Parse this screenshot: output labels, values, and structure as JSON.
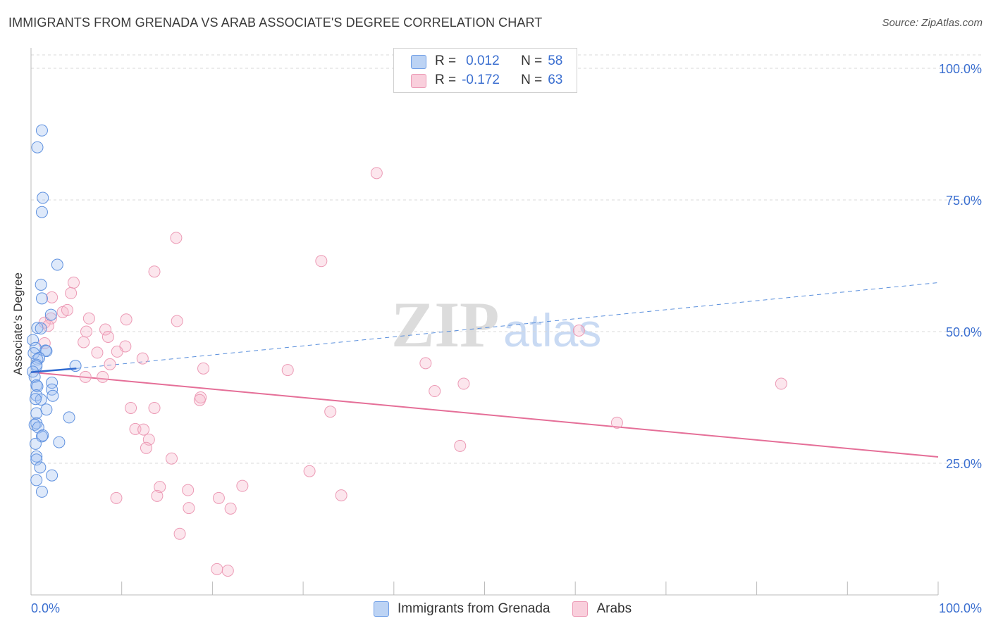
{
  "title": "IMMIGRANTS FROM GRENADA VS ARAB ASSOCIATE'S DEGREE CORRELATION CHART",
  "source": "Source: ZipAtlas.com",
  "watermark": {
    "zip": "ZIP",
    "atlas": "atlas"
  },
  "legend": {
    "r_label": "R =",
    "n_label": "N =",
    "series": [
      {
        "r": "0.012",
        "n": "58",
        "color": "#a9c6f2",
        "stroke": "#5a8fdc"
      },
      {
        "r": "-0.172",
        "n": "63",
        "color": "#f7bfd0",
        "stroke": "#e98aa8"
      }
    ]
  },
  "bottom_legend": [
    "Immigrants from Grenada",
    "Arabs"
  ],
  "chart_data": {
    "type": "scatter",
    "title": "IMMIGRANTS FROM GRENADA VS ARAB ASSOCIATE'S DEGREE CORRELATION CHART",
    "xlabel": "",
    "ylabel": "Associate's Degree",
    "xlim": [
      0,
      100
    ],
    "ylim": [
      0,
      100
    ],
    "x_tick_labels": [
      "0.0%",
      "100.0%"
    ],
    "y_tick_labels": [
      "100.0%",
      "75.0%",
      "50.0%",
      "25.0%"
    ],
    "y_ticks": [
      100,
      75,
      50,
      25
    ],
    "grid": true,
    "legend_position": "top-center",
    "series": [
      {
        "name": "Immigrants from Grenada",
        "color": "#6f9ee6",
        "r": 0.012,
        "n": 58,
        "trend": {
          "x": [
            0,
            5
          ],
          "y": [
            42.3,
            43.0
          ],
          "extended_to": [
            100,
            59.3
          ]
        },
        "points": [
          [
            1.2,
            88.2
          ],
          [
            0.7,
            85.0
          ],
          [
            1.3,
            75.4
          ],
          [
            1.2,
            72.7
          ],
          [
            2.9,
            62.7
          ],
          [
            1.1,
            58.9
          ],
          [
            1.2,
            56.3
          ],
          [
            2.2,
            53.2
          ],
          [
            0.7,
            50.7
          ],
          [
            1.1,
            50.6
          ],
          [
            0.2,
            48.4
          ],
          [
            0.5,
            46.9
          ],
          [
            1.6,
            46.4
          ],
          [
            1.7,
            46.3
          ],
          [
            0.3,
            45.9
          ],
          [
            0.9,
            45.0
          ],
          [
            0.7,
            44.7
          ],
          [
            0.6,
            43.7
          ],
          [
            0.6,
            43.4
          ],
          [
            4.9,
            43.5
          ],
          [
            0.2,
            42.4
          ],
          [
            0.4,
            41.4
          ],
          [
            2.3,
            40.3
          ],
          [
            0.6,
            39.8
          ],
          [
            0.7,
            39.6
          ],
          [
            2.3,
            39.0
          ],
          [
            0.6,
            37.9
          ],
          [
            2.4,
            37.8
          ],
          [
            1.1,
            37.1
          ],
          [
            0.5,
            37.2
          ],
          [
            1.7,
            35.2
          ],
          [
            0.6,
            34.5
          ],
          [
            4.2,
            33.7
          ],
          [
            0.6,
            32.6
          ],
          [
            0.4,
            32.3
          ],
          [
            0.8,
            31.8
          ],
          [
            1.3,
            30.3
          ],
          [
            1.2,
            30.1
          ],
          [
            3.1,
            29.0
          ],
          [
            0.5,
            28.7
          ],
          [
            0.6,
            26.3
          ],
          [
            0.6,
            25.7
          ],
          [
            1.0,
            24.2
          ],
          [
            2.3,
            22.7
          ],
          [
            0.6,
            21.8
          ],
          [
            1.2,
            19.6
          ]
        ]
      },
      {
        "name": "Arabs",
        "color": "#f2a3bc",
        "r": -0.172,
        "n": 63,
        "trend": {
          "x": [
            0,
            100
          ],
          "y": [
            42.3,
            26.2
          ]
        },
        "points": [
          [
            38.1,
            80.1
          ],
          [
            16.0,
            67.8
          ],
          [
            32.0,
            63.4
          ],
          [
            13.6,
            61.4
          ],
          [
            4.7,
            59.3
          ],
          [
            4.4,
            57.3
          ],
          [
            2.3,
            56.5
          ],
          [
            2.2,
            52.5
          ],
          [
            3.5,
            53.7
          ],
          [
            4.0,
            54.1
          ],
          [
            6.4,
            52.5
          ],
          [
            10.5,
            52.3
          ],
          [
            16.1,
            52.0
          ],
          [
            1.5,
            51.7
          ],
          [
            1.9,
            51.1
          ],
          [
            6.1,
            50.0
          ],
          [
            8.2,
            50.4
          ],
          [
            60.4,
            50.2
          ],
          [
            8.5,
            49.0
          ],
          [
            5.8,
            48.0
          ],
          [
            10.4,
            47.2
          ],
          [
            1.5,
            47.8
          ],
          [
            9.5,
            46.2
          ],
          [
            7.3,
            46.0
          ],
          [
            12.3,
            44.9
          ],
          [
            8.7,
            43.8
          ],
          [
            43.5,
            44.0
          ],
          [
            19.0,
            43.0
          ],
          [
            28.3,
            42.7
          ],
          [
            6.0,
            41.4
          ],
          [
            7.9,
            41.4
          ],
          [
            47.7,
            40.1
          ],
          [
            82.7,
            40.1
          ],
          [
            44.5,
            38.7
          ],
          [
            18.7,
            37.5
          ],
          [
            18.6,
            37.0
          ],
          [
            11.0,
            35.5
          ],
          [
            13.6,
            35.5
          ],
          [
            33.0,
            34.8
          ],
          [
            64.6,
            32.7
          ],
          [
            11.5,
            31.5
          ],
          [
            12.4,
            31.4
          ],
          [
            13.0,
            29.5
          ],
          [
            12.7,
            27.9
          ],
          [
            47.3,
            28.3
          ],
          [
            15.5,
            25.9
          ],
          [
            30.7,
            23.5
          ],
          [
            14.2,
            20.5
          ],
          [
            23.3,
            20.7
          ],
          [
            17.3,
            19.9
          ],
          [
            13.9,
            18.8
          ],
          [
            20.7,
            18.4
          ],
          [
            9.4,
            18.4
          ],
          [
            34.2,
            18.9
          ],
          [
            17.4,
            16.5
          ],
          [
            22.0,
            16.4
          ],
          [
            16.4,
            11.6
          ],
          [
            20.5,
            4.9
          ],
          [
            21.7,
            4.6
          ]
        ]
      }
    ]
  }
}
